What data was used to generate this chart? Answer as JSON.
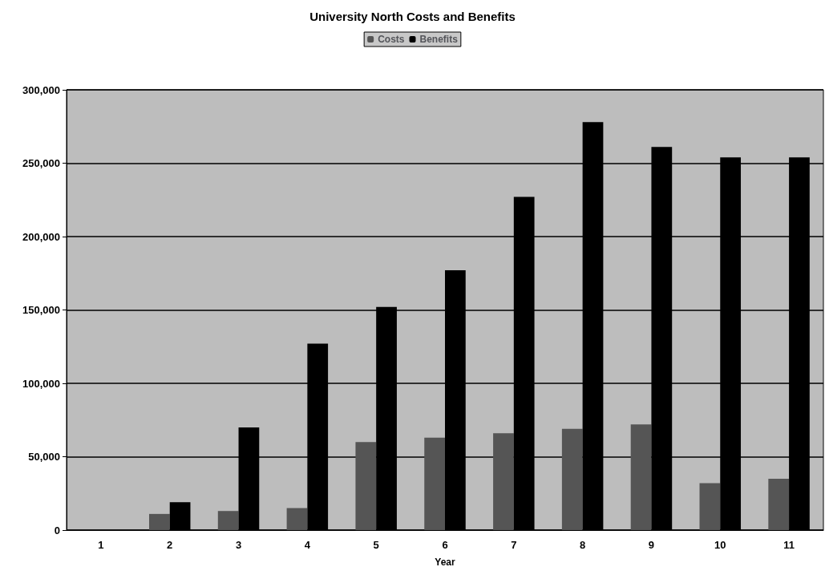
{
  "chart_data": {
    "type": "bar",
    "title": "University North Costs and Benefits",
    "xlabel": "Year",
    "categories": [
      "1",
      "2",
      "3",
      "4",
      "5",
      "6",
      "7",
      "8",
      "9",
      "10",
      "11"
    ],
    "series": [
      {
        "name": "Costs",
        "color": "#555555",
        "values": [
          0,
          11000,
          13000,
          15000,
          60000,
          63000,
          66000,
          69000,
          72000,
          32000,
          35000
        ]
      },
      {
        "name": "Benefits",
        "color": "#000000",
        "values": [
          0,
          19000,
          70000,
          127000,
          152000,
          177000,
          227000,
          278000,
          261000,
          254000,
          254000
        ]
      }
    ],
    "ylim": [
      0,
      300000
    ],
    "yticks": [
      0,
      {
        "value": 50000,
        "label": "50,000"
      },
      {
        "value": 100000,
        "label": "100,000"
      },
      {
        "value": 150000,
        "label": "150,000"
      },
      {
        "value": 200000,
        "label": "200,000"
      },
      {
        "value": 250000,
        "label": "250,000"
      },
      {
        "value": 300000,
        "label": "300,000"
      }
    ],
    "grid": "y",
    "legend": "top"
  }
}
